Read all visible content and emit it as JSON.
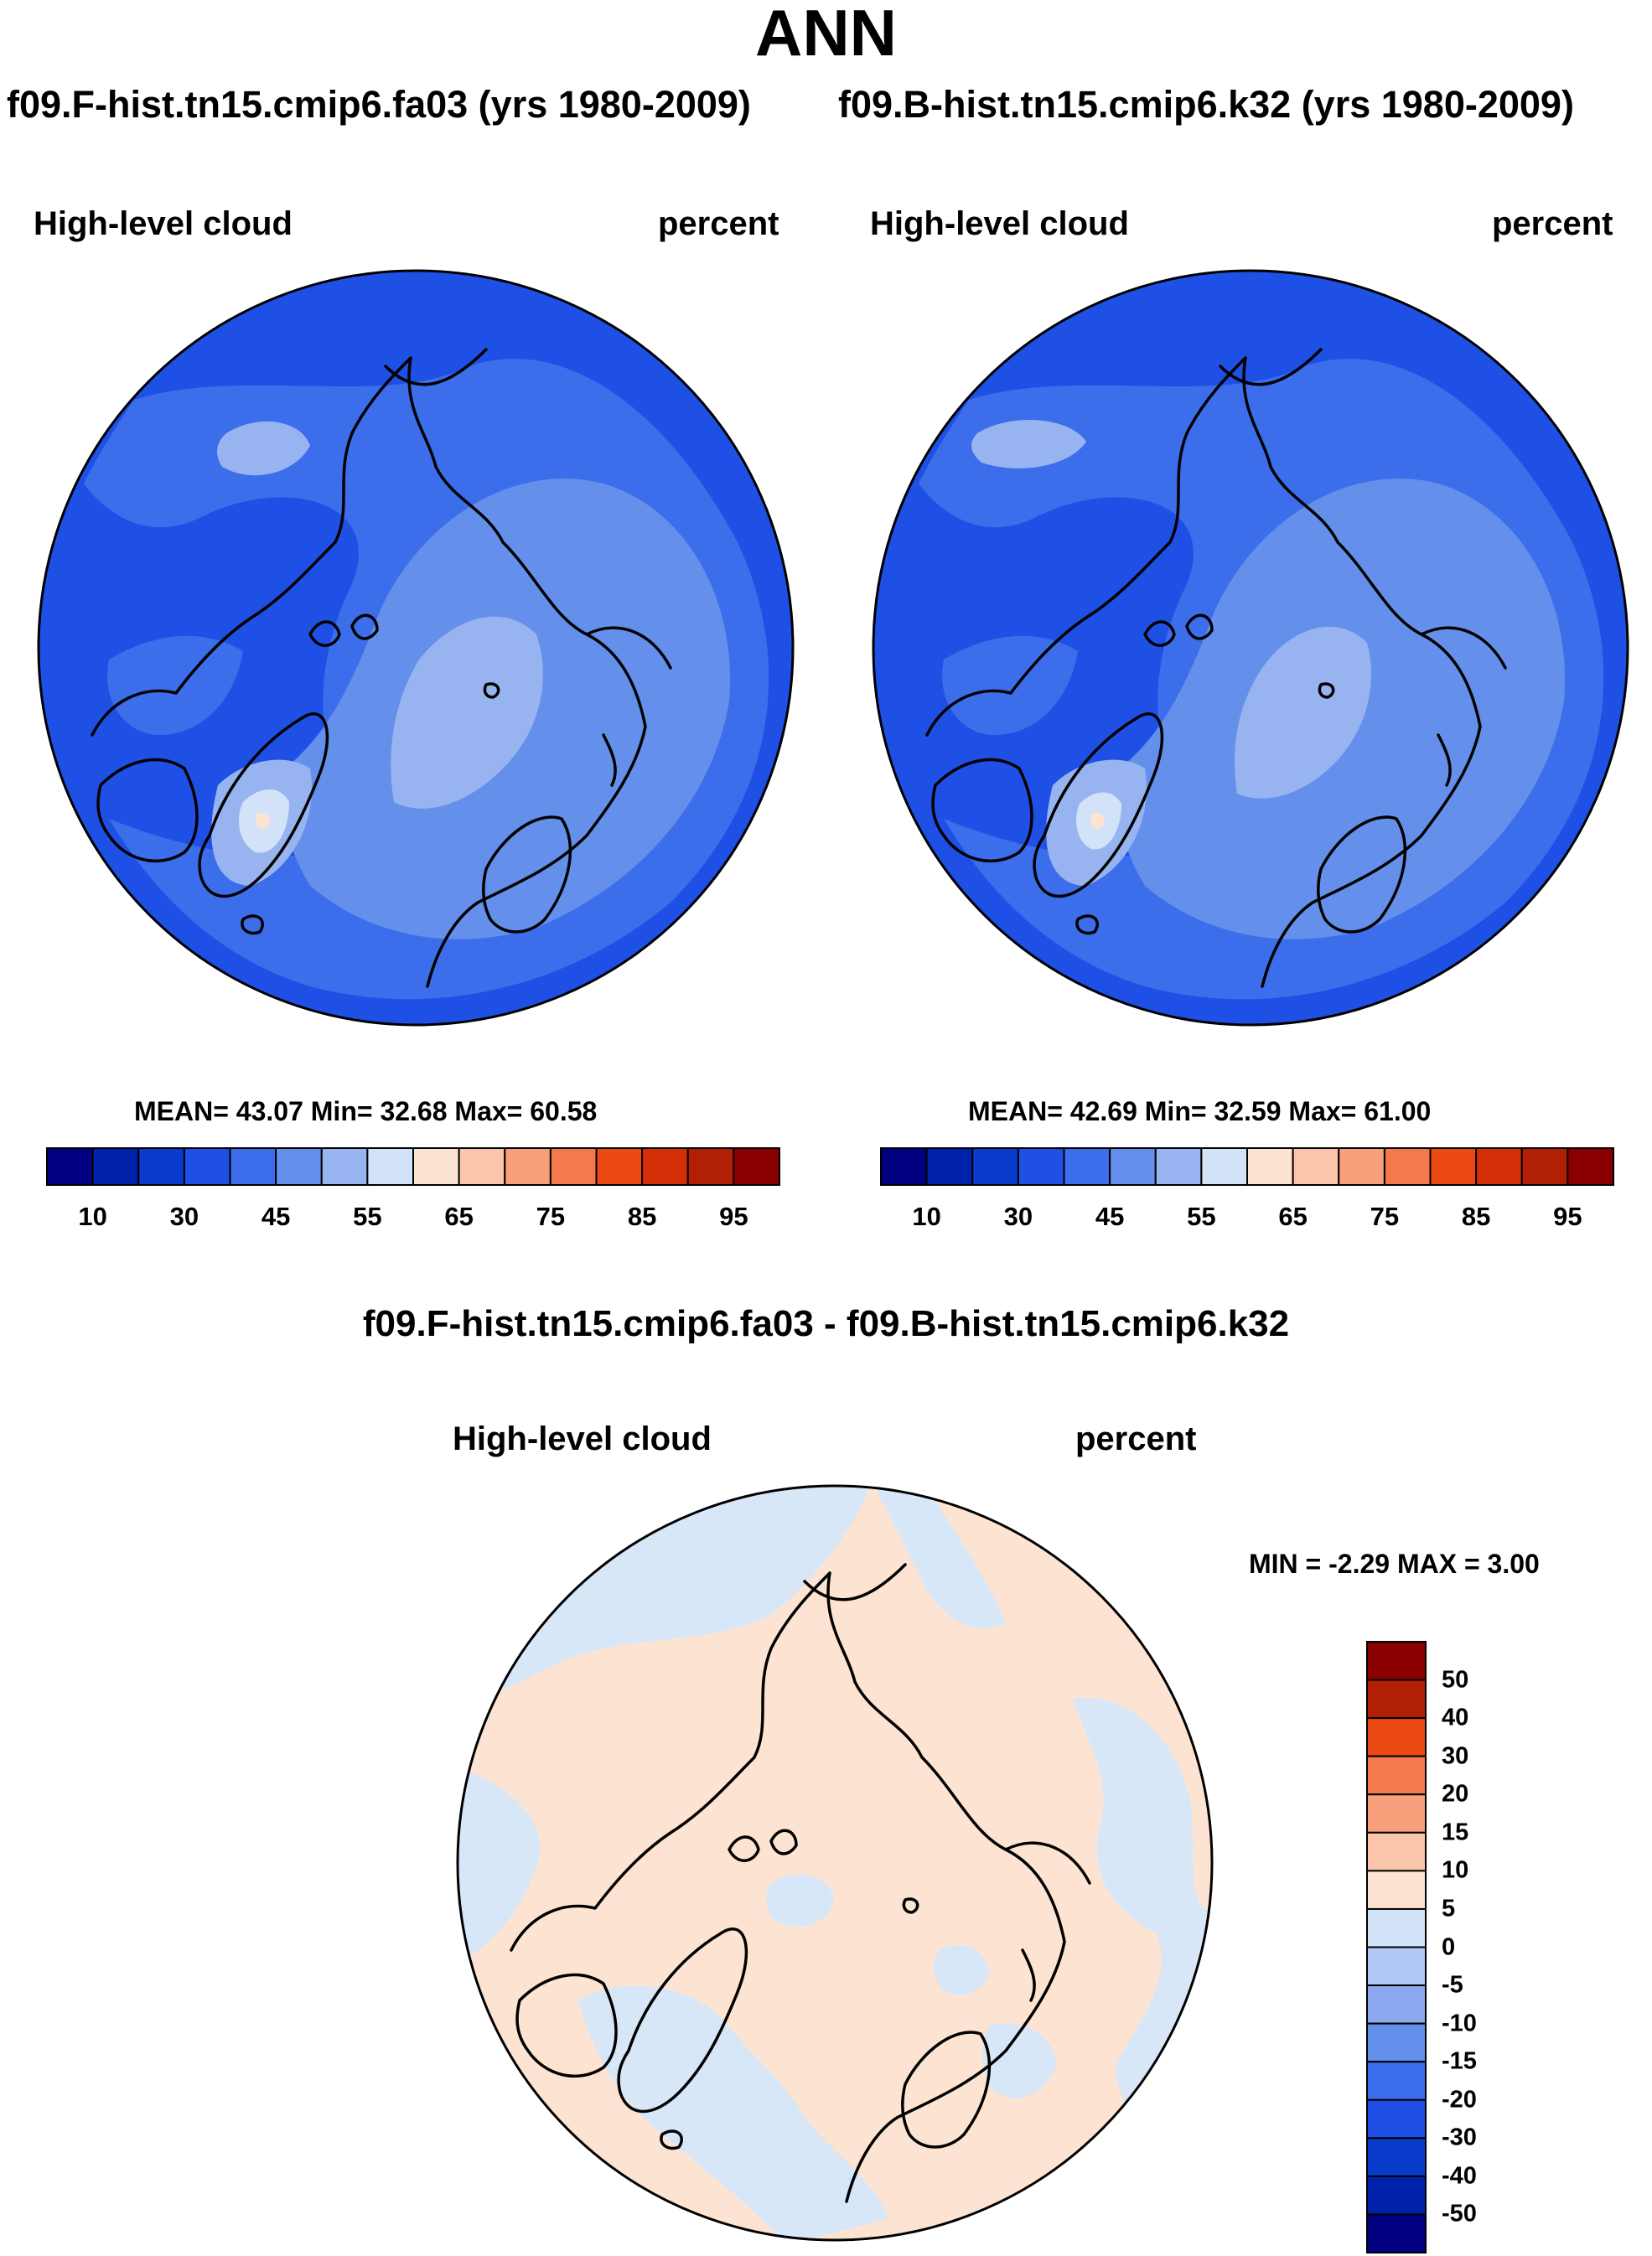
{
  "title": "ANN",
  "case1_header": "f09.F-hist.tn15.cmip6.fa03 (yrs 1980-2009)",
  "case2_header": "f09.B-hist.tn15.cmip6.k32 (yrs 1980-2009)",
  "panels": [
    {
      "variable": "High-level cloud",
      "units": "percent",
      "stats": "MEAN=  43.07  Min=  32.68  Max=  60.58",
      "mean": 43.07,
      "min": 32.68,
      "max": 60.58
    },
    {
      "variable": "High-level cloud",
      "units": "percent",
      "stats": "MEAN=  42.69  Min=  32.59  Max=  61.00",
      "mean": 42.69,
      "min": 32.59,
      "max": 61.0
    }
  ],
  "horizontal_colorbar": {
    "levels": [
      5,
      10,
      20,
      30,
      40,
      45,
      50,
      55,
      60,
      65,
      70,
      75,
      80,
      85,
      90,
      95
    ],
    "tick_labels": [
      "10",
      "30",
      "45",
      "55",
      "65",
      "75",
      "85",
      "95"
    ],
    "colors": [
      "#000080",
      "#0022aa",
      "#0a3ccc",
      "#1e50e6",
      "#3c6eeb",
      "#6490eb",
      "#98b4f0",
      "#d2e3f8",
      "#fde4d2",
      "#fbc5ab",
      "#f8a07c",
      "#f47a4d",
      "#ec4a14",
      "#d42f06",
      "#b11f04",
      "#8a0000"
    ]
  },
  "difference": {
    "title": "f09.F-hist.tn15.cmip6.fa03 - f09.B-hist.tn15.cmip6.k32",
    "variable": "High-level cloud",
    "units": "percent",
    "stats": "MIN =  -2.29 MAX =   3.00",
    "min": -2.29,
    "max": 3.0
  },
  "vertical_colorbar": {
    "tick_labels": [
      "50",
      "40",
      "30",
      "20",
      "15",
      "10",
      "5",
      "0",
      "-5",
      "-10",
      "-15",
      "-20",
      "-30",
      "-40",
      "-50"
    ],
    "colors": [
      "#8a0000",
      "#b11f04",
      "#ec4a14",
      "#f47a4d",
      "#f8a07c",
      "#fbc5ab",
      "#fde4d2",
      "#d2e3f8",
      "#b0c8f3",
      "#8ca8ef",
      "#6490eb",
      "#3c6eeb",
      "#1e50e6",
      "#0a3ccc",
      "#0022aa",
      "#000080"
    ]
  },
  "map_colors": {
    "c25": "#1e50e6",
    "c35": "#3c6eeb",
    "c42": "#6490eb",
    "c48": "#98b4f0",
    "c55": "#d2e3f8",
    "c60": "#fde4d2",
    "diff_pos": "#fde4d2",
    "diff_neg": "#d8e7f8"
  }
}
